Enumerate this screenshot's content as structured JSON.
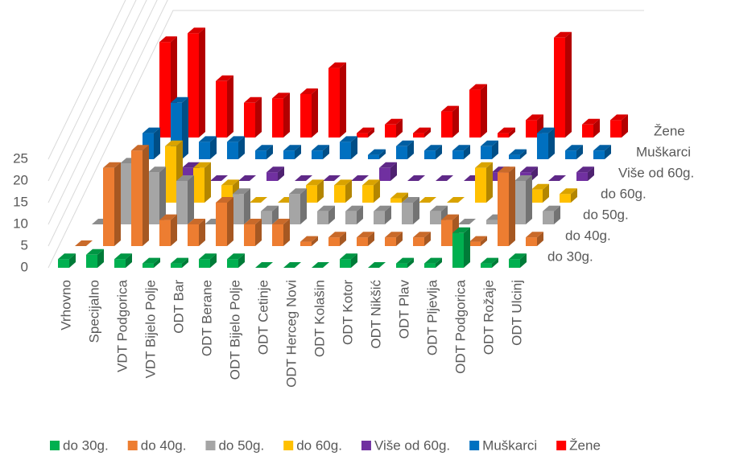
{
  "chart_data": {
    "type": "bar3d",
    "categories": [
      "Vrhovno",
      "Specijalno",
      "VDT Podgorica",
      "VDT Bijelo Polje",
      "ODT Bar",
      "ODT Berane",
      "ODT Bijelo Polje",
      "ODT Cetinje",
      "ODT Herceg Novi",
      "ODT Kolašin",
      "ODT Kotor",
      "ODT Nikšić",
      "ODT Plav",
      "ODT Pljevlja",
      "ODT Podgorica",
      "ODT Rožaje",
      "ODT Ulcinj"
    ],
    "series": [
      {
        "name": "do 30g.",
        "color": "#00b050",
        "values": [
          2,
          3,
          2,
          1,
          1,
          2,
          2,
          0,
          0,
          0,
          2,
          0,
          1,
          1,
          8,
          1,
          2
        ]
      },
      {
        "name": "do 40g.",
        "color": "#ed7d31",
        "values": [
          0,
          18,
          22,
          6,
          5,
          10,
          5,
          5,
          1,
          2,
          2,
          2,
          2,
          6,
          1,
          17,
          2
        ]
      },
      {
        "name": "do 50g.",
        "color": "#a5a5a5",
        "values": [
          0,
          14,
          12,
          10,
          0,
          7,
          3,
          7,
          3,
          3,
          3,
          5,
          3,
          0,
          1,
          10,
          3
        ]
      },
      {
        "name": "do 60g.",
        "color": "#ffc000",
        "values": [
          0,
          1,
          13,
          8,
          4,
          0,
          0,
          4,
          4,
          4,
          1,
          0,
          0,
          8,
          0,
          3,
          2
        ]
      },
      {
        "name": "Više od 60g.",
        "color": "#7030a0",
        "values": [
          0,
          0,
          3,
          0,
          0,
          2,
          0,
          0,
          0,
          3,
          0,
          0,
          0,
          2,
          2,
          0,
          2
        ]
      },
      {
        "name": "Muškarci",
        "color": "#0070c0",
        "values": [
          6,
          13,
          4,
          4,
          2,
          2,
          2,
          4,
          1,
          3,
          2,
          2,
          3,
          1,
          6,
          2,
          2
        ]
      },
      {
        "name": "Žene",
        "color": "#ff0000",
        "values": [
          22,
          24,
          13,
          8,
          9,
          10,
          16,
          1,
          3,
          1,
          6,
          11,
          1,
          4,
          23,
          3,
          4
        ]
      }
    ],
    "ylim": [
      0,
      25
    ],
    "yticks": [
      0,
      5,
      10,
      15,
      20,
      25
    ],
    "grid": true
  }
}
